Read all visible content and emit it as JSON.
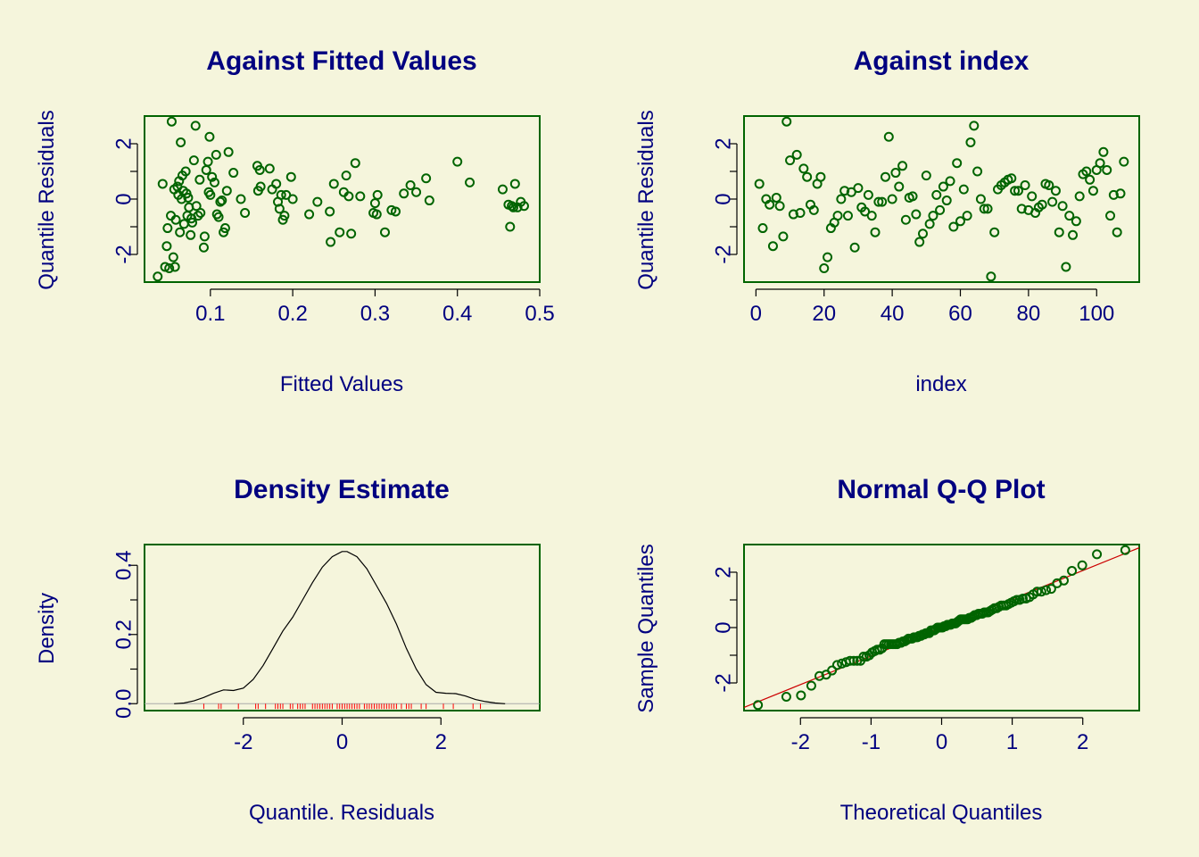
{
  "colors": {
    "background": "#f5f5dc",
    "text": "#000080",
    "frame": "#006400",
    "points": "#006400",
    "ref_line": "#cc0000",
    "rug": "#ff0000",
    "density": "#000000"
  },
  "chart_data": [
    {
      "type": "scatter",
      "title": "Against Fitted Values",
      "xlabel": "Fitted Values",
      "ylabel": "Quantile Residuals",
      "xlim": [
        0.02,
        0.5
      ],
      "ylim": [
        -3,
        3
      ],
      "xticks": [
        "0.1",
        "0.2",
        "0.3",
        "0.4",
        "0.5"
      ],
      "xtick_values": [
        0.1,
        0.2,
        0.3,
        0.4,
        0.5
      ],
      "yticks": [
        "-2",
        "0",
        "2"
      ],
      "ytick_values": [
        -2,
        0,
        2
      ],
      "yminor": [
        -1,
        1
      ],
      "points": [
        [
          0.036,
          -2.8
        ],
        [
          0.042,
          0.55
        ],
        [
          0.045,
          -2.45
        ],
        [
          0.047,
          -1.7
        ],
        [
          0.048,
          -1.05
        ],
        [
          0.05,
          -2.5
        ],
        [
          0.052,
          -0.6
        ],
        [
          0.053,
          2.8
        ],
        [
          0.055,
          -2.1
        ],
        [
          0.056,
          0.35
        ],
        [
          0.057,
          -2.45
        ],
        [
          0.058,
          -0.75
        ],
        [
          0.06,
          0.45
        ],
        [
          0.061,
          0.15
        ],
        [
          0.062,
          0.65
        ],
        [
          0.063,
          -1.2
        ],
        [
          0.064,
          2.05
        ],
        [
          0.065,
          0.0
        ],
        [
          0.066,
          0.85
        ],
        [
          0.067,
          0.3
        ],
        [
          0.068,
          -0.9
        ],
        [
          0.07,
          1.0
        ],
        [
          0.071,
          0.2
        ],
        [
          0.072,
          -0.6
        ],
        [
          0.073,
          0.05
        ],
        [
          0.074,
          -0.3
        ],
        [
          0.076,
          -1.3
        ],
        [
          0.077,
          -0.7
        ],
        [
          0.078,
          -0.85
        ],
        [
          0.08,
          1.4
        ],
        [
          0.082,
          2.65
        ],
        [
          0.083,
          -0.25
        ],
        [
          0.085,
          -0.6
        ],
        [
          0.087,
          0.7
        ],
        [
          0.088,
          -0.5
        ],
        [
          0.092,
          -1.75
        ],
        [
          0.093,
          -1.35
        ],
        [
          0.095,
          1.05
        ],
        [
          0.097,
          1.35
        ],
        [
          0.098,
          0.25
        ],
        [
          0.099,
          2.25
        ],
        [
          0.1,
          0.15
        ],
        [
          0.102,
          0.8
        ],
        [
          0.105,
          0.6
        ],
        [
          0.107,
          1.6
        ],
        [
          0.108,
          -0.55
        ],
        [
          0.11,
          -0.65
        ],
        [
          0.112,
          -0.1
        ],
        [
          0.114,
          -0.05
        ],
        [
          0.116,
          -1.2
        ],
        [
          0.118,
          -1.05
        ],
        [
          0.12,
          0.3
        ],
        [
          0.122,
          1.7
        ],
        [
          0.128,
          0.95
        ],
        [
          0.137,
          0.0
        ],
        [
          0.142,
          -0.5
        ],
        [
          0.157,
          1.2
        ],
        [
          0.158,
          0.3
        ],
        [
          0.16,
          1.05
        ],
        [
          0.161,
          0.45
        ],
        [
          0.172,
          1.1
        ],
        [
          0.175,
          0.35
        ],
        [
          0.18,
          0.55
        ],
        [
          0.182,
          -0.1
        ],
        [
          0.184,
          -0.35
        ],
        [
          0.186,
          0.15
        ],
        [
          0.188,
          -0.75
        ],
        [
          0.19,
          -0.6
        ],
        [
          0.192,
          0.15
        ],
        [
          0.198,
          0.8
        ],
        [
          0.2,
          0.0
        ],
        [
          0.22,
          -0.55
        ],
        [
          0.23,
          -0.1
        ],
        [
          0.245,
          -0.45
        ],
        [
          0.246,
          -1.55
        ],
        [
          0.25,
          0.55
        ],
        [
          0.257,
          -1.2
        ],
        [
          0.262,
          0.25
        ],
        [
          0.265,
          0.85
        ],
        [
          0.268,
          0.1
        ],
        [
          0.271,
          -1.25
        ],
        [
          0.276,
          1.3
        ],
        [
          0.282,
          0.1
        ],
        [
          0.298,
          -0.5
        ],
        [
          0.3,
          -0.15
        ],
        [
          0.302,
          -0.55
        ],
        [
          0.303,
          0.15
        ],
        [
          0.312,
          -1.2
        ],
        [
          0.32,
          -0.4
        ],
        [
          0.325,
          -0.45
        ],
        [
          0.335,
          0.2
        ],
        [
          0.343,
          0.5
        ],
        [
          0.35,
          0.25
        ],
        [
          0.362,
          0.75
        ],
        [
          0.366,
          -0.05
        ],
        [
          0.4,
          1.35
        ],
        [
          0.415,
          0.6
        ],
        [
          0.455,
          0.35
        ],
        [
          0.462,
          -0.2
        ],
        [
          0.464,
          -1.0
        ],
        [
          0.466,
          -0.25
        ],
        [
          0.468,
          -0.3
        ],
        [
          0.47,
          0.55
        ],
        [
          0.473,
          -0.3
        ],
        [
          0.477,
          -0.1
        ],
        [
          0.481,
          -0.25
        ]
      ]
    },
    {
      "type": "scatter",
      "title": "Against  index",
      "xlabel": "index",
      "ylabel": "Quantile Residuals",
      "xlim": [
        -3.5,
        112.5
      ],
      "ylim": [
        -3,
        3
      ],
      "xticks": [
        "0",
        "20",
        "40",
        "60",
        "80",
        "100"
      ],
      "xtick_values": [
        0,
        20,
        40,
        60,
        80,
        100
      ],
      "yticks": [
        "-2",
        "0",
        "2"
      ],
      "ytick_values": [
        -2,
        0,
        2
      ],
      "yminor": [
        -1,
        1
      ],
      "points": [
        [
          1,
          0.55
        ],
        [
          2,
          -1.05
        ],
        [
          3,
          0.0
        ],
        [
          4,
          -0.2
        ],
        [
          5,
          -1.7
        ],
        [
          6,
          0.05
        ],
        [
          7,
          -0.25
        ],
        [
          8,
          -1.35
        ],
        [
          9,
          2.8
        ],
        [
          10,
          1.4
        ],
        [
          11,
          -0.55
        ],
        [
          12,
          1.6
        ],
        [
          13,
          -0.5
        ],
        [
          14,
          1.1
        ],
        [
          15,
          0.8
        ],
        [
          16,
          -0.2
        ],
        [
          17,
          -0.4
        ],
        [
          18,
          0.55
        ],
        [
          19,
          0.8
        ],
        [
          20,
          -2.5
        ],
        [
          21,
          -2.1
        ],
        [
          22,
          -1.05
        ],
        [
          23,
          -0.85
        ],
        [
          24,
          -0.6
        ],
        [
          25,
          0.0
        ],
        [
          26,
          0.3
        ],
        [
          27,
          -0.6
        ],
        [
          28,
          0.25
        ],
        [
          29,
          -1.75
        ],
        [
          30,
          0.4
        ],
        [
          31,
          -0.3
        ],
        [
          32,
          -0.45
        ],
        [
          33,
          0.15
        ],
        [
          34,
          -0.6
        ],
        [
          35,
          -1.2
        ],
        [
          36,
          -0.1
        ],
        [
          37,
          -0.1
        ],
        [
          38,
          0.8
        ],
        [
          39,
          2.25
        ],
        [
          40,
          0.0
        ],
        [
          41,
          0.95
        ],
        [
          42,
          0.45
        ],
        [
          43,
          1.2
        ],
        [
          44,
          -0.75
        ],
        [
          45,
          0.05
        ],
        [
          46,
          0.1
        ],
        [
          47,
          -0.55
        ],
        [
          48,
          -1.55
        ],
        [
          49,
          -1.25
        ],
        [
          50,
          0.85
        ],
        [
          51,
          -0.9
        ],
        [
          52,
          -0.6
        ],
        [
          53,
          0.15
        ],
        [
          54,
          -0.4
        ],
        [
          55,
          0.45
        ],
        [
          56,
          -0.05
        ],
        [
          57,
          0.65
        ],
        [
          58,
          -1.0
        ],
        [
          59,
          1.3
        ],
        [
          60,
          -0.8
        ],
        [
          61,
          0.35
        ],
        [
          62,
          -0.6
        ],
        [
          63,
          2.05
        ],
        [
          64,
          2.65
        ],
        [
          65,
          1.0
        ],
        [
          66,
          0.0
        ],
        [
          67,
          -0.35
        ],
        [
          68,
          -0.35
        ],
        [
          69,
          -2.8
        ],
        [
          70,
          -1.2
        ],
        [
          71,
          0.35
        ],
        [
          72,
          0.5
        ],
        [
          73,
          0.6
        ],
        [
          74,
          0.7
        ],
        [
          75,
          0.75
        ],
        [
          76,
          0.3
        ],
        [
          77,
          0.3
        ],
        [
          78,
          -0.35
        ],
        [
          79,
          0.5
        ],
        [
          80,
          -0.4
        ],
        [
          81,
          0.1
        ],
        [
          82,
          -0.5
        ],
        [
          83,
          -0.3
        ],
        [
          84,
          -0.2
        ],
        [
          85,
          0.55
        ],
        [
          86,
          0.5
        ],
        [
          87,
          -0.1
        ],
        [
          88,
          0.3
        ],
        [
          89,
          -1.2
        ],
        [
          90,
          -0.25
        ],
        [
          91,
          -2.45
        ],
        [
          92,
          -0.6
        ],
        [
          93,
          -1.3
        ],
        [
          94,
          -0.8
        ],
        [
          95,
          0.1
        ],
        [
          96,
          0.9
        ],
        [
          97,
          1.0
        ],
        [
          98,
          0.7
        ],
        [
          99,
          0.3
        ],
        [
          100,
          1.05
        ],
        [
          101,
          1.3
        ],
        [
          102,
          1.7
        ],
        [
          103,
          1.05
        ],
        [
          104,
          -0.6
        ],
        [
          105,
          0.15
        ],
        [
          106,
          -1.2
        ],
        [
          107,
          0.2
        ],
        [
          108,
          1.35
        ]
      ]
    },
    {
      "type": "line",
      "title": "Density Estimate",
      "xlabel": "Quantile. Residuals",
      "ylabel": "Density",
      "xlim": [
        -4,
        4
      ],
      "ylim": [
        -0.02,
        0.46
      ],
      "xticks": [
        "-2",
        "0",
        "2"
      ],
      "xtick_values": [
        -2,
        0,
        2
      ],
      "yticks": [
        "0.0",
        "0.2",
        "0.4"
      ],
      "ytick_values": [
        0.0,
        0.2,
        0.4
      ],
      "yminor": [
        0.1,
        0.3
      ],
      "curve": [
        [
          -3.4,
          0.0
        ],
        [
          -3.2,
          0.002
        ],
        [
          -3.0,
          0.008
        ],
        [
          -2.8,
          0.018
        ],
        [
          -2.6,
          0.03
        ],
        [
          -2.4,
          0.04
        ],
        [
          -2.2,
          0.038
        ],
        [
          -2.0,
          0.045
        ],
        [
          -1.8,
          0.07
        ],
        [
          -1.6,
          0.11
        ],
        [
          -1.4,
          0.16
        ],
        [
          -1.2,
          0.21
        ],
        [
          -1.0,
          0.25
        ],
        [
          -0.8,
          0.3
        ],
        [
          -0.6,
          0.35
        ],
        [
          -0.4,
          0.395
        ],
        [
          -0.2,
          0.425
        ],
        [
          0.0,
          0.44
        ],
        [
          0.1,
          0.44
        ],
        [
          0.3,
          0.425
        ],
        [
          0.5,
          0.39
        ],
        [
          0.7,
          0.34
        ],
        [
          0.9,
          0.29
        ],
        [
          1.1,
          0.23
        ],
        [
          1.3,
          0.16
        ],
        [
          1.5,
          0.1
        ],
        [
          1.7,
          0.055
        ],
        [
          1.9,
          0.033
        ],
        [
          2.1,
          0.03
        ],
        [
          2.3,
          0.029
        ],
        [
          2.5,
          0.022
        ],
        [
          2.7,
          0.012
        ],
        [
          2.9,
          0.006
        ],
        [
          3.1,
          0.002
        ],
        [
          3.3,
          0.0
        ]
      ],
      "rug": [
        -2.8,
        -2.5,
        -2.45,
        -2.1,
        -1.75,
        -1.7,
        -1.55,
        -1.35,
        -1.3,
        -1.25,
        -1.2,
        -1.05,
        -1.0,
        -0.9,
        -0.85,
        -0.8,
        -0.75,
        -0.6,
        -0.55,
        -0.5,
        -0.45,
        -0.4,
        -0.35,
        -0.3,
        -0.25,
        -0.2,
        -0.1,
        -0.05,
        0.0,
        0.05,
        0.1,
        0.15,
        0.2,
        0.25,
        0.3,
        0.35,
        0.45,
        0.5,
        0.55,
        0.6,
        0.65,
        0.7,
        0.75,
        0.8,
        0.85,
        0.9,
        0.95,
        1.0,
        1.05,
        1.1,
        1.2,
        1.3,
        1.35,
        1.4,
        1.6,
        1.7,
        2.05,
        2.25,
        2.65,
        2.8
      ]
    },
    {
      "type": "scatter",
      "title": "Normal Q-Q Plot",
      "xlabel": "Theoretical Quantiles",
      "ylabel": "Sample Quantiles",
      "xlim": [
        -2.8,
        2.8
      ],
      "ylim": [
        -3,
        3
      ],
      "xticks": [
        "-2",
        "-1",
        "0",
        "1",
        "2"
      ],
      "xtick_values": [
        -2,
        -1,
        0,
        1,
        2
      ],
      "yticks": [
        "-2",
        "0",
        "2"
      ],
      "ytick_values": [
        -2,
        0,
        2
      ],
      "yminor": [
        -1,
        1
      ],
      "reference_line": {
        "intercept": 0.0,
        "slope": 1.03
      },
      "n_points": 108
    }
  ]
}
